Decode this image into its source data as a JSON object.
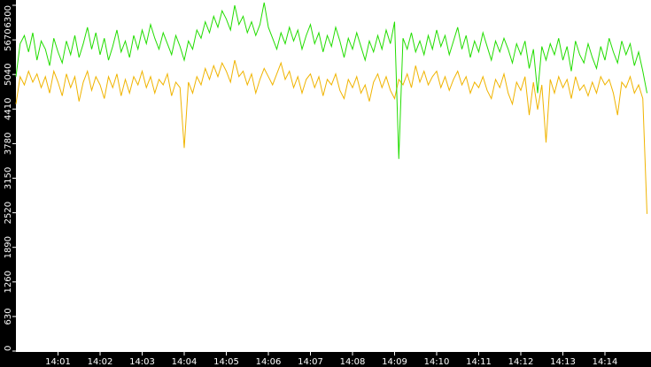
{
  "chart_data": {
    "type": "line",
    "categories": [
      null,
      null,
      null,
      null,
      null,
      null,
      null,
      null,
      null,
      null,
      "14:01",
      null,
      null,
      null,
      null,
      null,
      null,
      null,
      null,
      null,
      "14:02",
      null,
      null,
      null,
      null,
      null,
      null,
      null,
      null,
      null,
      "14:03",
      null,
      null,
      null,
      null,
      null,
      null,
      null,
      null,
      null,
      "14:04",
      null,
      null,
      null,
      null,
      null,
      null,
      null,
      null,
      null,
      "14:05",
      null,
      null,
      null,
      null,
      null,
      null,
      null,
      null,
      null,
      "14:06",
      null,
      null,
      null,
      null,
      null,
      null,
      null,
      null,
      null,
      "14:07",
      null,
      null,
      null,
      null,
      null,
      null,
      null,
      null,
      null,
      "14:08",
      null,
      null,
      null,
      null,
      null,
      null,
      null,
      null,
      null,
      "14:09",
      null,
      null,
      null,
      null,
      null,
      null,
      null,
      null,
      null,
      "14:10",
      null,
      null,
      null,
      null,
      null,
      null,
      null,
      null,
      null,
      "14:11",
      null,
      null,
      null,
      null,
      null,
      null,
      null,
      null,
      null,
      "14:12",
      null,
      null,
      null,
      null,
      null,
      null,
      null,
      null,
      null,
      "14:13",
      null,
      null,
      null,
      null,
      null,
      null,
      null,
      null,
      null,
      "14:14",
      null,
      null,
      null,
      null,
      null,
      null,
      null,
      null,
      null,
      null
    ],
    "series": [
      {
        "color": "#22dd00",
        "values": [
          5000,
          5600,
          5750,
          5450,
          5800,
          5300,
          5650,
          5500,
          5200,
          5700,
          5450,
          5250,
          5650,
          5400,
          5750,
          5350,
          5600,
          5900,
          5500,
          5800,
          5400,
          5700,
          5300,
          5550,
          5850,
          5450,
          5650,
          5350,
          5750,
          5500,
          5850,
          5600,
          5950,
          5700,
          5500,
          5800,
          5600,
          5400,
          5750,
          5550,
          5300,
          5650,
          5500,
          5850,
          5700,
          6000,
          5800,
          6100,
          5900,
          6200,
          6050,
          5850,
          6300,
          5950,
          6100,
          5800,
          6000,
          5750,
          5950,
          6350,
          5900,
          5700,
          5500,
          5800,
          5600,
          5900,
          5650,
          5850,
          5500,
          5750,
          5950,
          5600,
          5800,
          5450,
          5750,
          5550,
          5900,
          5650,
          5350,
          5700,
          5500,
          5800,
          5550,
          5300,
          5650,
          5450,
          5750,
          5500,
          5850,
          5600,
          6000,
          3500,
          5700,
          5500,
          5800,
          5450,
          5650,
          5400,
          5750,
          5500,
          5850,
          5550,
          5750,
          5400,
          5650,
          5900,
          5500,
          5750,
          5350,
          5650,
          5450,
          5800,
          5550,
          5300,
          5650,
          5450,
          5700,
          5500,
          5250,
          5600,
          5400,
          5650,
          5150,
          5500,
          4700,
          5550,
          5300,
          5600,
          5400,
          5700,
          5300,
          5550,
          5100,
          5650,
          5400,
          5250,
          5600,
          5350,
          5150,
          5550,
          5300,
          5700,
          5450,
          5250,
          5650,
          5400,
          5600,
          5200,
          5450,
          5100,
          4700
        ]
      },
      {
        "color": "#f0b400",
        "values": [
          4500,
          5000,
          4850,
          5100,
          4900,
          5050,
          4800,
          5000,
          4700,
          5100,
          4900,
          4650,
          5050,
          4800,
          5000,
          4550,
          4900,
          5100,
          4750,
          5000,
          4850,
          4600,
          5000,
          4800,
          5050,
          4650,
          4950,
          4700,
          5000,
          4850,
          5100,
          4800,
          5000,
          4700,
          4950,
          4850,
          5050,
          4650,
          4900,
          4800,
          3700,
          4900,
          4700,
          5000,
          4850,
          5150,
          4950,
          5200,
          5000,
          5250,
          5100,
          4900,
          5300,
          5000,
          5100,
          4850,
          5050,
          4700,
          4950,
          5150,
          5000,
          4850,
          5050,
          5250,
          4950,
          5100,
          4800,
          5000,
          4700,
          4950,
          5050,
          4800,
          5000,
          4650,
          4950,
          4850,
          5050,
          4750,
          4600,
          4950,
          4800,
          5000,
          4700,
          4850,
          4550,
          4900,
          5050,
          4800,
          5000,
          4750,
          4600,
          4950,
          4850,
          5050,
          4800,
          5200,
          4900,
          5100,
          4850,
          5000,
          5100,
          4800,
          5000,
          4750,
          4950,
          5100,
          4850,
          5000,
          4700,
          4900,
          4800,
          5000,
          4750,
          4600,
          4950,
          4800,
          5050,
          4700,
          4500,
          4900,
          4750,
          5000,
          4300,
          4900,
          4400,
          4850,
          3800,
          4950,
          4700,
          5000,
          4800,
          4950,
          4600,
          5000,
          4750,
          4850,
          4650,
          4900,
          4700,
          5000,
          4850,
          4950,
          4700,
          4300,
          4900,
          4800,
          5000,
          4700,
          4850,
          4600,
          2500
        ]
      }
    ],
    "ylim": [
      0,
      6300
    ],
    "yticks": [
      0,
      630,
      1260,
      1890,
      2520,
      3150,
      3780,
      4410,
      5040,
      5670,
      6300
    ]
  }
}
